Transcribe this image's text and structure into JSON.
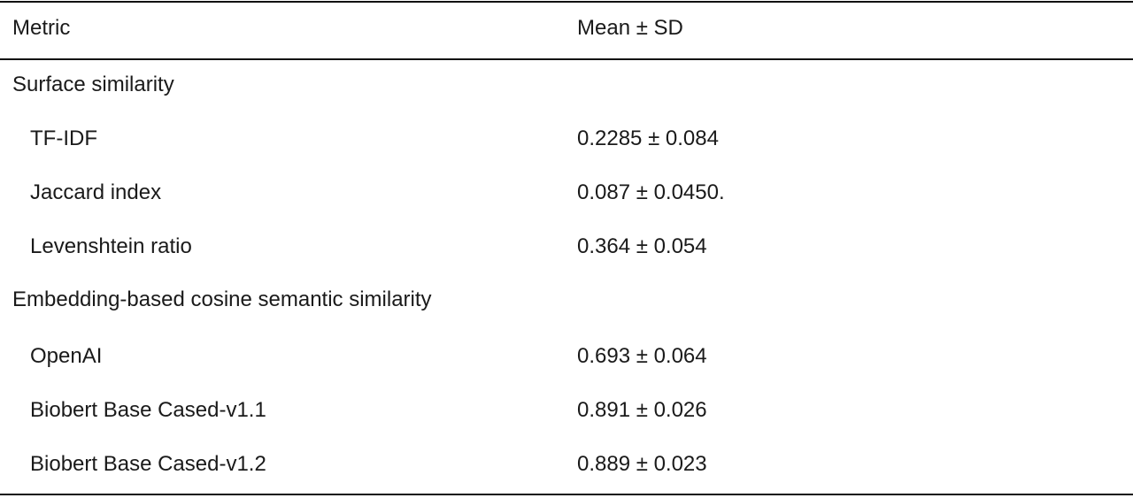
{
  "table": {
    "header": {
      "metric": "Metric",
      "value": "Mean ± SD"
    },
    "rows": [
      {
        "type": "section",
        "metric": "Surface similarity",
        "value": ""
      },
      {
        "type": "item",
        "metric": "TF-IDF",
        "value": "0.2285 ± 0.084"
      },
      {
        "type": "item",
        "metric": "Jaccard index",
        "value": "0.087 ± 0.0450."
      },
      {
        "type": "item",
        "metric": "Levenshtein ratio",
        "value": "0.364 ± 0.054"
      },
      {
        "type": "section",
        "metric": "Embedding-based cosine semantic similarity",
        "value": ""
      },
      {
        "type": "item",
        "metric": "OpenAI",
        "value": "0.693 ± 0.064"
      },
      {
        "type": "item",
        "metric": "Biobert Base Cased-v1.1",
        "value": "0.891 ± 0.026"
      },
      {
        "type": "item",
        "metric": "Biobert Base Cased-v1.2",
        "value": "0.889 ± 0.023"
      }
    ]
  }
}
